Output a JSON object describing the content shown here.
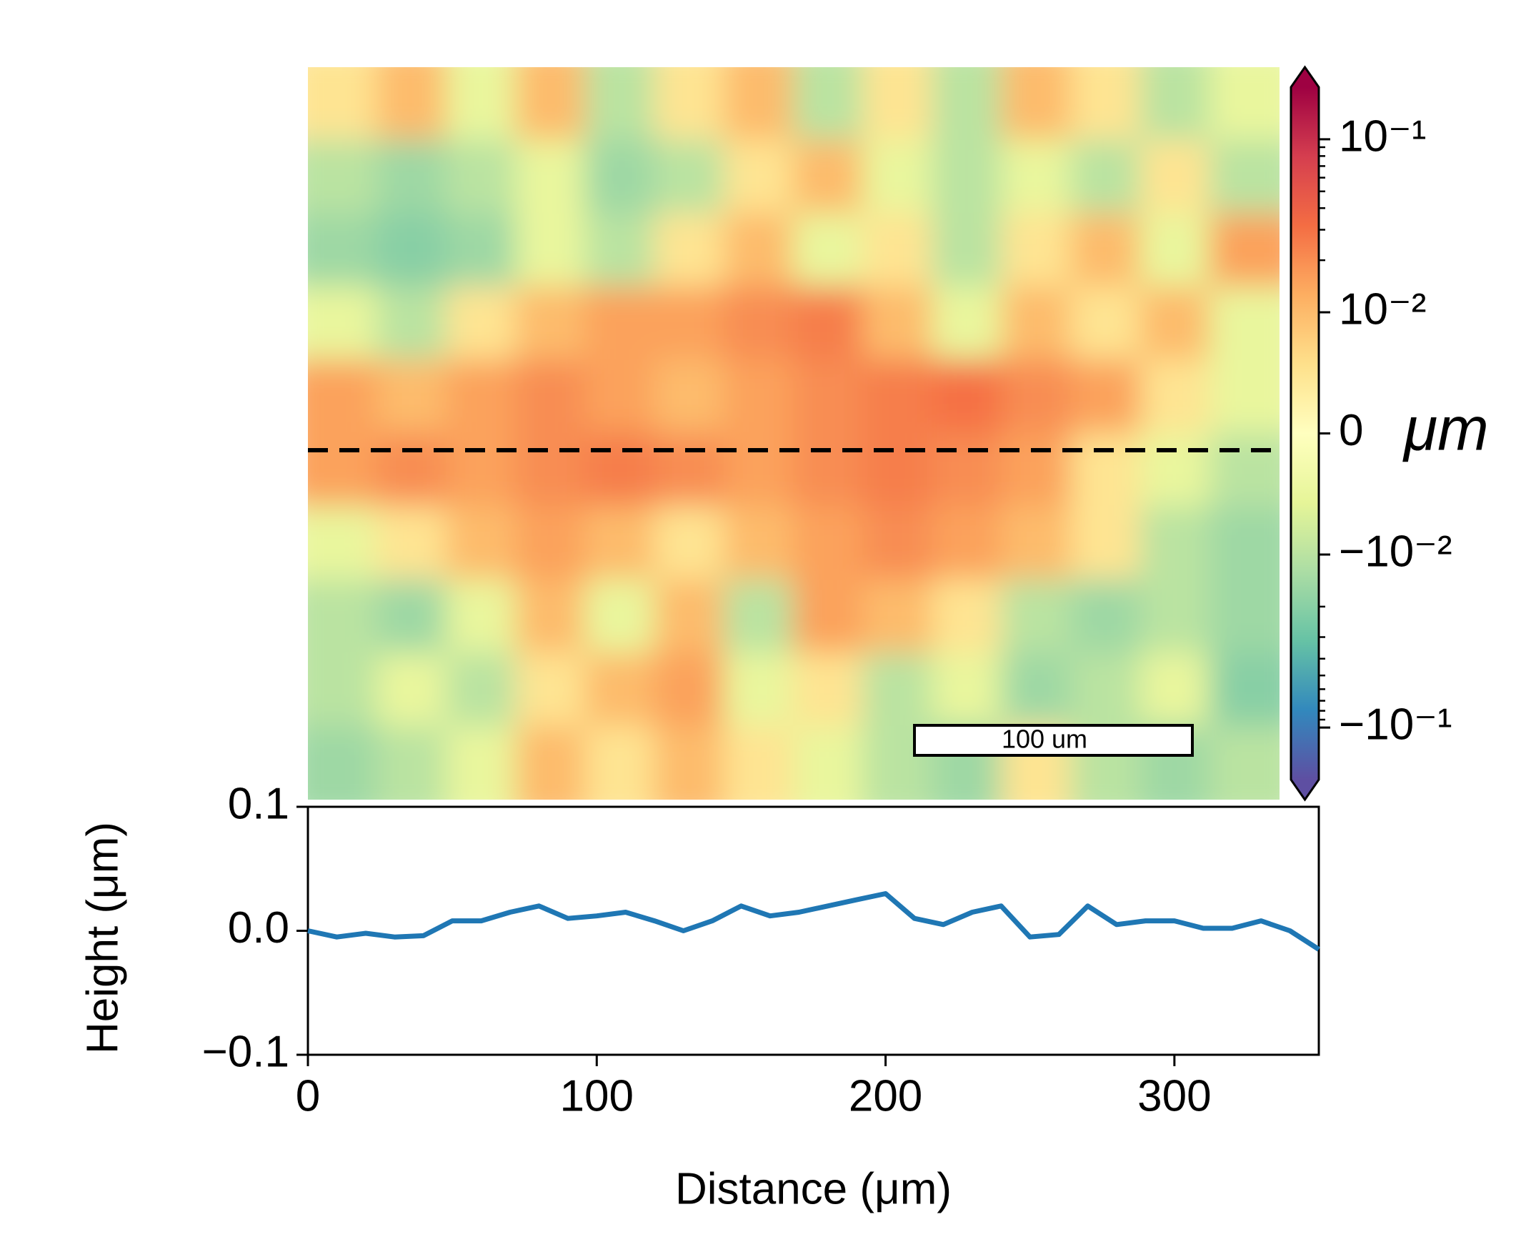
{
  "chart_data": [
    {
      "type": "heatmap",
      "values": [
        [
          0.005,
          0.01,
          -0.005,
          0.01,
          -0.01,
          0.005,
          0.01,
          -0.01,
          0.005,
          -0.01,
          0.01,
          0.005,
          -0.01,
          -0.005
        ],
        [
          -0.01,
          -0.015,
          -0.01,
          -0.005,
          -0.015,
          -0.01,
          0.005,
          0.01,
          -0.005,
          -0.01,
          -0.005,
          -0.01,
          0.005,
          -0.01
        ],
        [
          -0.015,
          -0.02,
          -0.015,
          -0.005,
          -0.01,
          0.005,
          0.01,
          -0.005,
          0.005,
          -0.01,
          0.005,
          0.01,
          -0.005,
          0.015
        ],
        [
          -0.005,
          -0.01,
          0.005,
          0.01,
          0.015,
          0.015,
          0.02,
          0.025,
          0.01,
          -0.005,
          0.01,
          0.005,
          0.01,
          -0.005
        ],
        [
          0.015,
          0.01,
          0.015,
          0.02,
          0.015,
          0.01,
          0.015,
          0.02,
          0.025,
          0.03,
          0.02,
          0.015,
          0.005,
          -0.005
        ],
        [
          0.015,
          0.02,
          0.015,
          0.02,
          0.025,
          0.02,
          0.015,
          0.02,
          0.025,
          0.02,
          0.015,
          0.005,
          -0.005,
          -0.01
        ],
        [
          -0.005,
          0.005,
          0.01,
          0.015,
          0.01,
          0.005,
          0.01,
          0.015,
          0.02,
          0.015,
          0.01,
          0.005,
          -0.01,
          -0.015
        ],
        [
          -0.01,
          -0.015,
          -0.005,
          0.01,
          -0.005,
          0.01,
          -0.01,
          0.015,
          0.01,
          0.005,
          -0.01,
          -0.015,
          -0.01,
          -0.015
        ],
        [
          -0.01,
          -0.005,
          -0.01,
          0.005,
          0.01,
          0.015,
          -0.005,
          0.005,
          -0.01,
          -0.005,
          -0.015,
          -0.01,
          -0.005,
          -0.02
        ],
        [
          -0.015,
          -0.01,
          -0.005,
          0.01,
          0.005,
          0.01,
          0.005,
          -0.005,
          -0.01,
          -0.015,
          0.005,
          -0.01,
          -0.015,
          -0.01
        ]
      ],
      "colormap": [
        "#5e4fa2",
        "#3288bd",
        "#66c2a5",
        "#abdda4",
        "#e6f598",
        "#ffffbf",
        "#fee08b",
        "#fdae61",
        "#f46d43",
        "#d53e4f",
        "#9e0142"
      ],
      "clim": [
        -0.2,
        0.2
      ],
      "scale": "symlog",
      "linthresh": 0.01,
      "linscale": 0.7,
      "cticks": [
        {
          "value": 0.1,
          "label": "10⁻¹"
        },
        {
          "value": 0.01,
          "label": "10⁻²"
        },
        0,
        {
          "value": -0.01,
          "label": "−10⁻²"
        },
        {
          "value": -0.1,
          "label": "−10⁻¹"
        }
      ],
      "cminor_ticks": [
        0.02,
        0.03,
        0.04,
        0.05,
        0.06,
        0.07,
        0.08,
        0.09,
        -0.02,
        -0.03,
        -0.04,
        -0.05,
        -0.06,
        -0.07,
        -0.08,
        -0.09
      ],
      "colorbar_label": "μm",
      "extend": "both",
      "scalebar_label": "100 um"
    },
    {
      "type": "line",
      "x": [
        0,
        10,
        20,
        30,
        40,
        50,
        60,
        70,
        80,
        90,
        100,
        110,
        120,
        130,
        140,
        150,
        160,
        170,
        180,
        190,
        200,
        210,
        220,
        230,
        240,
        250,
        260,
        270,
        280,
        290,
        300,
        310,
        320,
        330,
        340,
        350
      ],
      "series": [
        {
          "color": "#1f77b4",
          "values": [
            0.0,
            -0.005,
            -0.002,
            -0.005,
            -0.004,
            0.008,
            0.008,
            0.015,
            0.02,
            0.01,
            0.012,
            0.015,
            0.008,
            0.0,
            0.008,
            0.02,
            0.012,
            0.015,
            0.02,
            0.025,
            0.03,
            0.01,
            0.005,
            0.015,
            0.02,
            -0.005,
            -0.003,
            0.02,
            0.005,
            0.008,
            0.008,
            0.002,
            0.002,
            0.008,
            0.0,
            -0.015
          ]
        }
      ],
      "xlim": [
        0,
        350
      ],
      "ylim": [
        -0.1,
        0.1
      ],
      "xticks": [
        0,
        100,
        200,
        300
      ],
      "yticks": [
        {
          "value": 0.1,
          "label": "0.1"
        },
        {
          "value": 0,
          "label": "0.0"
        },
        {
          "value": -0.1,
          "label": "−0.1"
        }
      ],
      "xlabel": "Distance (μm)",
      "ylabel": "Height (μm)"
    }
  ]
}
